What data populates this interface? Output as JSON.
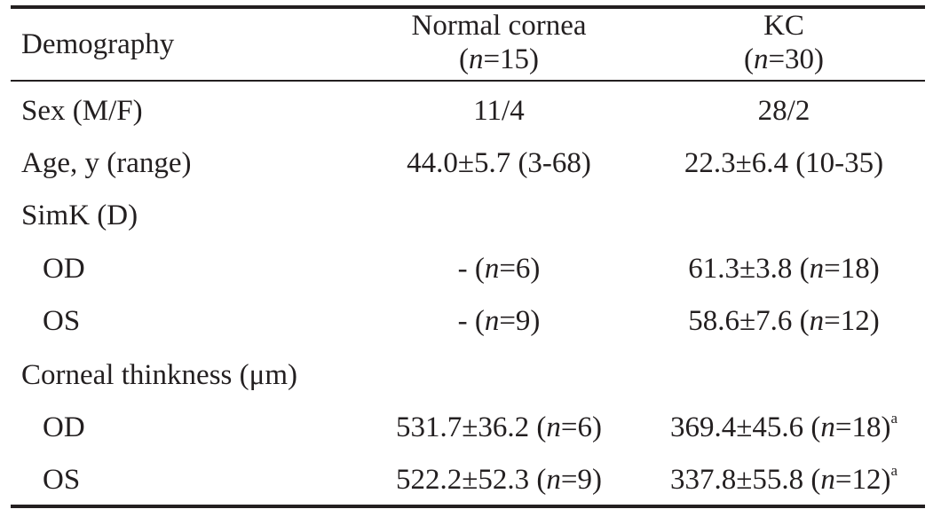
{
  "table": {
    "header": {
      "col0": "Demography",
      "col1_line1": "Normal cornea",
      "col1_n_prefix": "(",
      "col1_n_var": "n",
      "col1_n_suffix": "=15)",
      "col2_line1": "KC",
      "col2_n_prefix": "(",
      "col2_n_var": "n",
      "col2_n_suffix": "=30)"
    },
    "rows": [
      {
        "label": "Sex (M/F)",
        "normal": "11/4",
        "kc": "28/2"
      },
      {
        "label": "Age, y (range)",
        "normal": "44.0±5.7 (3-68)",
        "kc": "22.3±6.4 (10-35)"
      },
      {
        "label": "SimK (D)"
      },
      {
        "label": "OD",
        "normal_pre": "- (",
        "normal_var": "n",
        "normal_post": "=6)",
        "kc_pre": "61.3±3.8 (",
        "kc_var": "n",
        "kc_post": "=18)"
      },
      {
        "label": "OS",
        "normal_pre": "- (",
        "normal_var": "n",
        "normal_post": "=9)",
        "kc_pre": "58.6±7.6 (",
        "kc_var": "n",
        "kc_post": "=12)"
      },
      {
        "label": "Corneal thinkness (μm)"
      },
      {
        "label": "OD",
        "normal_pre": "531.7±36.2 (",
        "normal_var": "n",
        "normal_post": "=6)",
        "kc_pre": "369.4±45.6 (",
        "kc_var": "n",
        "kc_post": "=18)",
        "kc_sup": "a"
      },
      {
        "label": "OS",
        "normal_pre": "522.2±52.3 (",
        "normal_var": "n",
        "normal_post": "=9)",
        "kc_pre": "337.8±55.8 (",
        "kc_var": "n",
        "kc_post": "=12)",
        "kc_sup": "a"
      }
    ]
  }
}
